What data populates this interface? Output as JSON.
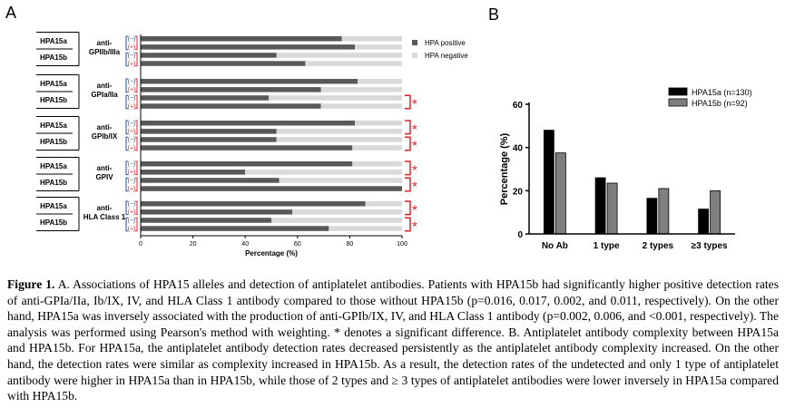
{
  "panel_labels": [
    "A",
    "B"
  ],
  "chart_data": [
    {
      "type": "bar",
      "orientation": "horizontal",
      "stacked": true,
      "panel": "A",
      "xlabel": "Percentage (%)",
      "xlim": [
        0,
        100
      ],
      "xticks": [
        0,
        20,
        40,
        60,
        80,
        100
      ],
      "legend": [
        "HPA positive",
        "HPA negative"
      ],
      "legend_position": "top-right",
      "colors": {
        "positive": "#595959",
        "negative": "#d9d9d9",
        "sign": "#1f4e9e",
        "star": "#d9232e"
      },
      "signs": [
        "(−)",
        "(+)"
      ],
      "groups": [
        {
          "antibody": [
            "anti-",
            "GPIIb/IIIa"
          ],
          "rows": [
            {
              "allele": "HPA15a",
              "values": [
                77,
                82
              ]
            },
            {
              "allele": "HPA15b",
              "values": [
                52,
                63
              ]
            }
          ],
          "stars": [
            false,
            false
          ]
        },
        {
          "antibody": [
            "anti-",
            "GPIa/IIa"
          ],
          "rows": [
            {
              "allele": "HPA15a",
              "values": [
                83,
                69
              ]
            },
            {
              "allele": "HPA15b",
              "values": [
                49,
                69
              ]
            }
          ],
          "stars": [
            false,
            true
          ]
        },
        {
          "antibody": [
            "anti-",
            "GPIb/IX"
          ],
          "rows": [
            {
              "allele": "HPA15a",
              "values": [
                82,
                52
              ]
            },
            {
              "allele": "HPA15b",
              "values": [
                52,
                81
              ]
            }
          ],
          "stars": [
            true,
            true
          ]
        },
        {
          "antibody": [
            "anti-",
            "GPIV"
          ],
          "rows": [
            {
              "allele": "HPA15a",
              "values": [
                81,
                40
              ]
            },
            {
              "allele": "HPA15b",
              "values": [
                53,
                100
              ]
            }
          ],
          "stars": [
            true,
            true
          ]
        },
        {
          "antibody": [
            "anti-",
            "HLA Class 1"
          ],
          "rows": [
            {
              "allele": "HPA15a",
              "values": [
                86,
                58
              ]
            },
            {
              "allele": "HPA15b",
              "values": [
                50,
                72
              ]
            }
          ],
          "stars": [
            true,
            true
          ]
        }
      ],
      "star_symbol": "*"
    },
    {
      "type": "bar",
      "panel": "B",
      "categories": [
        "No Ab",
        "1 type",
        "2 types",
        "≥3 types"
      ],
      "series": [
        {
          "name": "HPA15a (n=130)",
          "values": [
            48,
            26,
            16.5,
            11.5
          ],
          "color": "#000000"
        },
        {
          "name": "HPA15b (n=92)",
          "values": [
            37.5,
            23.5,
            21,
            20
          ],
          "color": "#7f7f7f"
        }
      ],
      "ylabel": "Percentage (%)",
      "ylim": [
        0,
        60
      ],
      "yticks": [
        0,
        20,
        40,
        60
      ],
      "legend_position": "top-right"
    }
  ],
  "caption": {
    "label": "Figure 1.",
    "text": " A. Associations of HPA15 alleles and detection of antiplatelet antibodies. Patients with HPA15b had significantly higher positive detection rates of anti-GPIa/IIa, Ib/IX, IV, and HLA Class 1 antibody compared to those without HPA15b (p=0.016, 0.017, 0.002, and 0.011, respectively). On the other hand, HPA15a was inversely associated with the production of anti-GPIb/IX, IV, and HLA Class 1 antibody (p=0.002, 0.006, and <0.001, respectively). The analysis was performed using Pearson's method with weighting. * denotes a significant difference. B. Antiplatelet antibody complexity between HPA15a and HPA15b. For HPA15a, the antiplatelet antibody detection rates decreased persistently as the antiplatelet antibody complexity increased. On the other hand, the detection rates were similar as complexity increased in HPA15b. As a result, the detection rates of the undetected and only 1 type of antiplatelet antibody were higher in HPA15a than in HPA15b, while those of 2 types and ≥ 3 types of antiplatelet antibodies were lower inversely in HPA15a compared with HPA15b."
  }
}
